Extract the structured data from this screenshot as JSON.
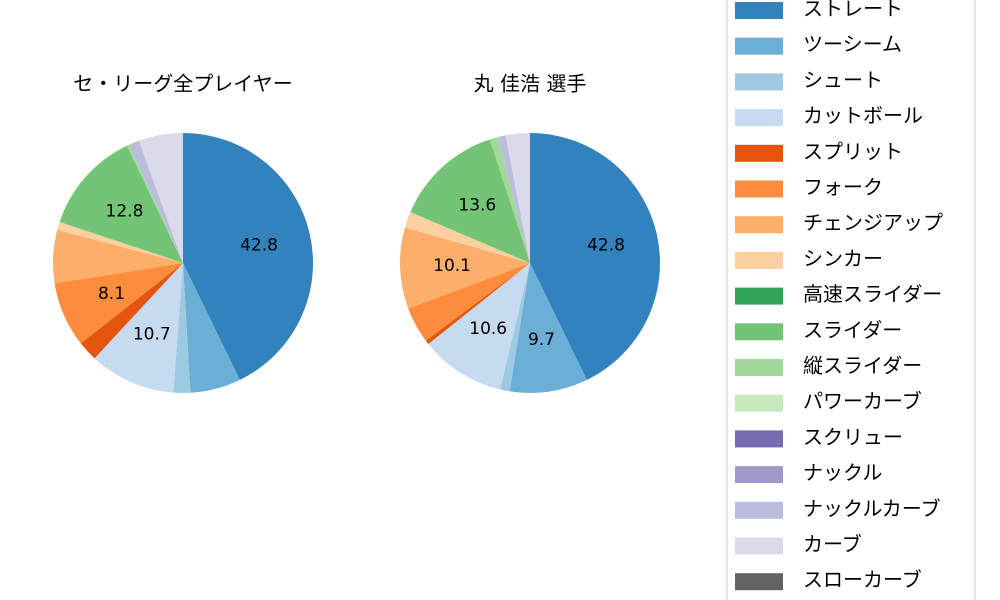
{
  "chart_data": [
    {
      "type": "pie",
      "title": "セ・リーグ全プレイヤー",
      "categories": [
        "ストレート",
        "ツーシーム",
        "シュート",
        "カットボール",
        "スプリット",
        "フォーク",
        "チェンジアップ",
        "シンカー",
        "高速スライダー",
        "スライダー",
        "縦スライダー",
        "パワーカーブ",
        "スクリュー",
        "ナックル",
        "ナックルカーブ",
        "カーブ",
        "スローカーブ"
      ],
      "colors": [
        "#3182bd",
        "#6baed6",
        "#9ecae1",
        "#c6dbef",
        "#e6550d",
        "#fd8d3c",
        "#fdae6b",
        "#fdd0a2",
        "#31a354",
        "#74c476",
        "#a1d99b",
        "#c7e9c0",
        "#756bb1",
        "#9e9ac8",
        "#bcbddc",
        "#dadaeb",
        "#636363"
      ],
      "values": [
        42.8,
        6.3,
        2.1,
        10.7,
        2.5,
        8.1,
        6.6,
        1.0,
        0,
        12.8,
        0.3,
        0,
        0,
        0,
        1.3,
        5.5,
        0
      ]
    },
    {
      "type": "pie",
      "title": "丸 佳浩  選手",
      "categories": [
        "ストレート",
        "ツーシーム",
        "シュート",
        "カットボール",
        "スプリット",
        "フォーク",
        "チェンジアップ",
        "シンカー",
        "高速スライダー",
        "スライダー",
        "縦スライダー",
        "パワーカーブ",
        "スクリュー",
        "ナックル",
        "ナックルカーブ",
        "カーブ",
        "スローカーブ"
      ],
      "colors": [
        "#3182bd",
        "#6baed6",
        "#9ecae1",
        "#c6dbef",
        "#e6550d",
        "#fd8d3c",
        "#fdae6b",
        "#fdd0a2",
        "#31a354",
        "#74c476",
        "#a1d99b",
        "#c7e9c0",
        "#756bb1",
        "#9e9ac8",
        "#bcbddc",
        "#dadaeb",
        "#636363"
      ],
      "values": [
        42.8,
        9.7,
        1.2,
        10.6,
        0.5,
        4.5,
        10.1,
        2.0,
        0,
        13.6,
        1.0,
        0,
        0,
        0,
        1.0,
        3.0,
        0
      ]
    }
  ]
}
